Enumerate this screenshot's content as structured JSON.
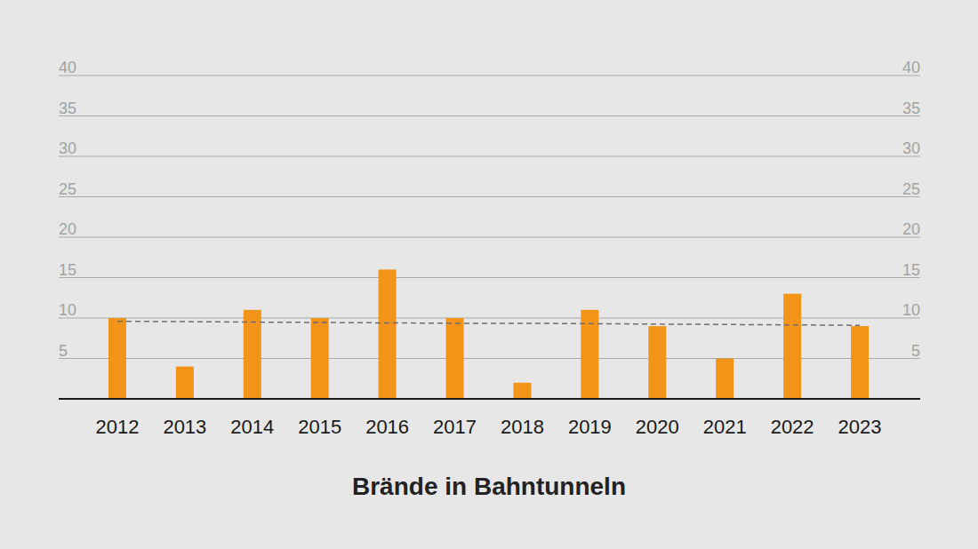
{
  "chart_data": {
    "type": "bar",
    "title": "Brände in Bahntunneln",
    "categories": [
      "2012",
      "2013",
      "2014",
      "2015",
      "2016",
      "2017",
      "2018",
      "2019",
      "2020",
      "2021",
      "2022",
      "2023"
    ],
    "series": [
      {
        "color": "#f39419",
        "values": [
          10,
          4,
          11,
          10,
          16,
          10,
          2,
          11,
          9,
          5,
          13,
          9
        ]
      },
      {
        "type": "line",
        "line_style": "dashed",
        "color": "#6e6e6e",
        "values": [
          9.6,
          9.55,
          9.5,
          9.45,
          9.4,
          9.35,
          9.35,
          9.3,
          9.25,
          9.2,
          9.15,
          9.1
        ]
      }
    ],
    "ylim": [
      0,
      40
    ],
    "yticks": [
      5,
      10,
      15,
      20,
      25,
      30,
      35,
      40
    ],
    "grid": true
  }
}
